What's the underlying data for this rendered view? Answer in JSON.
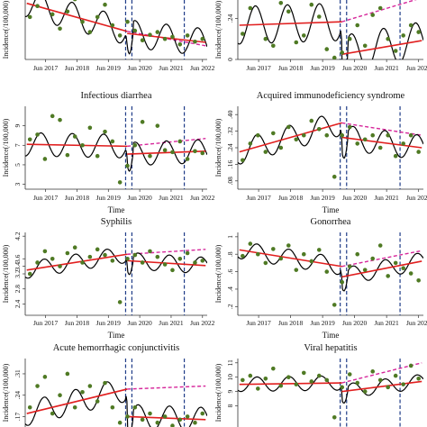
{
  "figure": {
    "colors": {
      "observed_dot": "#4f7a24",
      "fitted_line": "#000000",
      "trend_line": "#e11f1f",
      "counterfactual_line": "#d6279b",
      "intervention_line": "#1f3c88",
      "axis": "#333333"
    },
    "x_label": "Time",
    "y_label": "Incidence(/100,000)"
  },
  "chart_data": [
    {
      "id": "p1",
      "type": "line",
      "title": "",
      "xlabel": "",
      "ylabel": "Incidence(/100,000)",
      "x_ticks": [
        "Jun 2017",
        "Jun 2018",
        "Jun 2019",
        "Jun 2020",
        "Jun 2021",
        "Jun 2022"
      ],
      "y_ticks": [],
      "ylim": [
        0,
        1
      ],
      "interventions": [
        2020.05,
        2020.25,
        2021.92
      ],
      "seasonal": {
        "amp": 0.2,
        "period": 1.0,
        "phase": 0.1
      },
      "segments": [
        {
          "x": [
            2016.9,
            2020.1
          ],
          "y": [
            0.82,
            0.41
          ]
        },
        {
          "x": [
            2020.1,
            2022.6
          ],
          "y": [
            0.38,
            0.25
          ]
        }
      ],
      "counterfactual": {
        "x": [
          2020.1,
          2022.6
        ],
        "y": [
          0.41,
          0.2
        ]
      },
      "series": [
        {
          "values": [
            0.62,
            0.78,
            0.95,
            0.66,
            0.45,
            0.7,
            0.88,
            0.55,
            0.4,
            0.62,
            0.8,
            0.5,
            0.35,
            0.55,
            0.42,
            0.28,
            0.36,
            0.4,
            0.3,
            0.33,
            0.22,
            0.35,
            0.26,
            0.3
          ]
        }
      ]
    },
    {
      "id": "p2",
      "type": "line",
      "title": "",
      "xlabel": "",
      "ylabel": "Incidence(/100,000)",
      "x_ticks": [
        "Jun 2017",
        "Jun 2018",
        "Jun 2019",
        "Jun 2020",
        "Jun 2021",
        "Jun 2022"
      ],
      "y_ticks": [
        "0",
        ".24"
      ],
      "ylim": [
        0,
        0.4
      ],
      "interventions": [
        2020.05,
        2020.25,
        2021.92
      ],
      "seasonal": {
        "amp": 0.11,
        "period": 1.0,
        "phase": 0.15
      },
      "segments": [
        {
          "x": [
            2016.9,
            2020.1
          ],
          "y": [
            0.2,
            0.22
          ]
        },
        {
          "x": [
            2020.1,
            2022.6
          ],
          "y": [
            0.03,
            0.11
          ]
        }
      ],
      "counterfactual": {
        "x": [
          2020.1,
          2022.6
        ],
        "y": [
          0.22,
          0.36
        ]
      },
      "series": [
        {
          "values": [
            0.15,
            0.3,
            0.36,
            0.12,
            0.08,
            0.33,
            0.28,
            0.1,
            0.14,
            0.32,
            0.25,
            0.06,
            0.01,
            0.04,
            0.12,
            0.2,
            0.08,
            0.26,
            0.3,
            0.12,
            0.05,
            0.14,
            0.2,
            0.16
          ]
        }
      ]
    },
    {
      "id": "p3",
      "type": "line",
      "title": "Infectious diarrhea",
      "xlabel": "Time",
      "ylabel": "Incidence(/100,000)",
      "x_ticks": [
        "Jun 2017",
        "Jun 2018",
        "Jun 2019",
        "Jun 2020",
        "Jun 2021",
        "Jun 2022"
      ],
      "y_ticks": [
        "3",
        "5",
        "7",
        "9"
      ],
      "ylim": [
        2.5,
        11
      ],
      "interventions": [
        2020.05,
        2020.25,
        2021.92
      ],
      "seasonal": {
        "amp": 1.2,
        "period": 1.0,
        "phase": 0.1
      },
      "segments": [
        {
          "x": [
            2016.9,
            2020.1
          ],
          "y": [
            7.1,
            6.9
          ]
        },
        {
          "x": [
            2020.1,
            2022.6
          ],
          "y": [
            6.1,
            6.4
          ]
        }
      ],
      "counterfactual": {
        "x": [
          2020.1,
          2022.6
        ],
        "y": [
          6.9,
          7.7
        ]
      },
      "series": [
        {
          "values": [
            7.6,
            8.1,
            5.6,
            10.0,
            9.6,
            6.0,
            7.9,
            7.0,
            8.8,
            5.9,
            8.4,
            7.4,
            3.2,
            4.9,
            7.0,
            9.4,
            5.9,
            9.0,
            6.5,
            6.3,
            7.4,
            5.6,
            6.4,
            6.2
          ]
        }
      ]
    },
    {
      "id": "p4",
      "type": "line",
      "title": "Acquired immunodeficiency syndrome",
      "xlabel": "Time",
      "ylabel": "Incidence(/100,000)",
      "x_ticks": [
        "Jun 2017",
        "Jun 2018",
        "Jun 2019",
        "Jun 2020",
        "Jun 2021",
        "Jun 2022"
      ],
      "y_ticks": [
        ".08",
        ".16",
        ".24",
        ".32",
        ".40"
      ],
      "ylim": [
        0.04,
        0.44
      ],
      "interventions": [
        2020.05,
        2020.25,
        2021.92
      ],
      "seasonal": {
        "amp": 0.06,
        "period": 1.0,
        "phase": 0.2
      },
      "segments": [
        {
          "x": [
            2016.9,
            2020.1
          ],
          "y": [
            0.22,
            0.36
          ]
        },
        {
          "x": [
            2020.1,
            2022.6
          ],
          "y": [
            0.29,
            0.24
          ]
        }
      ],
      "counterfactual": {
        "x": [
          2020.1,
          2022.6
        ],
        "y": [
          0.36,
          0.3
        ]
      },
      "series": [
        {
          "values": [
            0.18,
            0.26,
            0.3,
            0.22,
            0.31,
            0.24,
            0.34,
            0.28,
            0.3,
            0.37,
            0.33,
            0.3,
            0.1,
            0.3,
            0.34,
            0.26,
            0.28,
            0.3,
            0.24,
            0.3,
            0.2,
            0.26,
            0.3,
            0.22
          ]
        }
      ]
    },
    {
      "id": "p5",
      "type": "line",
      "title": "Syphilis",
      "xlabel": "Time",
      "ylabel": "Incidence(/100,000)",
      "x_ticks": [
        "Jun 2017",
        "Jun 2018",
        "Jun 2019",
        "Jun 2020",
        "Jun 2021",
        "Jun 2022"
      ],
      "y_ticks": [
        "2.4",
        "2.8",
        "3.2",
        "3.4",
        "3.6",
        "4.2"
      ],
      "ylim": [
        2.1,
        4.3
      ],
      "interventions": [
        2020.05,
        2020.25,
        2021.92
      ],
      "seasonal": {
        "amp": 0.22,
        "period": 1.0,
        "phase": 0.2
      },
      "segments": [
        {
          "x": [
            2016.9,
            2020.1
          ],
          "y": [
            3.3,
            3.72
          ]
        },
        {
          "x": [
            2020.1,
            2022.6
          ],
          "y": [
            3.55,
            3.42
          ]
        }
      ],
      "counterfactual": {
        "x": [
          2020.1,
          2022.6
        ],
        "y": [
          3.72,
          3.85
        ]
      },
      "series": [
        {
          "values": [
            3.2,
            3.5,
            3.8,
            3.6,
            3.4,
            3.75,
            3.9,
            3.5,
            3.65,
            3.85,
            3.7,
            3.55,
            2.45,
            3.6,
            3.7,
            3.5,
            3.8,
            3.65,
            3.45,
            3.3,
            3.6,
            3.75,
            3.5,
            3.55
          ]
        }
      ]
    },
    {
      "id": "p6",
      "type": "line",
      "title": "Gonorrhea",
      "xlabel": "Time",
      "ylabel": "Incidence(/100,000)",
      "x_ticks": [
        "Jun 2017",
        "Jun 2018",
        "Jun 2019",
        "Jun 2020",
        "Jun 2021",
        "Jun 2022"
      ],
      "y_ticks": [
        ".2",
        ".4",
        ".6",
        ".8",
        "1"
      ],
      "ylim": [
        0.1,
        1.05
      ],
      "interventions": [
        2020.05,
        2020.25,
        2021.92
      ],
      "seasonal": {
        "amp": 0.1,
        "period": 1.0,
        "phase": 0.2
      },
      "segments": [
        {
          "x": [
            2016.9,
            2020.1
          ],
          "y": [
            0.85,
            0.66
          ]
        },
        {
          "x": [
            2020.1,
            2022.6
          ],
          "y": [
            0.54,
            0.72
          ]
        }
      ],
      "counterfactual": {
        "x": [
          2020.1,
          2022.6
        ],
        "y": [
          0.66,
          0.84
        ]
      },
      "series": [
        {
          "values": [
            0.78,
            0.92,
            0.8,
            0.7,
            0.86,
            0.75,
            0.9,
            0.62,
            0.8,
            0.72,
            0.85,
            0.6,
            0.22,
            0.48,
            0.66,
            0.8,
            0.62,
            0.75,
            0.9,
            0.55,
            0.7,
            0.64,
            0.58,
            0.5
          ]
        }
      ]
    },
    {
      "id": "p7",
      "type": "line",
      "title": "Acute hemorrhagic conjunctivitis",
      "xlabel": "",
      "ylabel": "Incidence(/100,000)",
      "x_ticks": [],
      "y_ticks": [
        ".17",
        ".24",
        ".31"
      ],
      "ylim": [
        0.13,
        0.36
      ],
      "interventions": [
        2020.05,
        2020.25,
        2021.92
      ],
      "seasonal": {
        "amp": 0.04,
        "period": 1.0,
        "phase": 0.2
      },
      "segments": [
        {
          "x": [
            2016.9,
            2020.1
          ],
          "y": [
            0.18,
            0.26
          ]
        },
        {
          "x": [
            2020.1,
            2022.6
          ],
          "y": [
            0.17,
            0.16
          ]
        }
      ],
      "counterfactual": {
        "x": [
          2020.1,
          2022.6
        ],
        "y": [
          0.26,
          0.27
        ]
      },
      "series": [
        {
          "values": [
            0.2,
            0.27,
            0.3,
            0.18,
            0.24,
            0.31,
            0.2,
            0.25,
            0.27,
            0.22,
            0.28,
            0.2,
            0.15,
            0.17,
            0.2,
            0.16,
            0.18,
            0.15,
            0.17,
            0.14,
            0.16,
            0.17,
            0.15,
            0.18
          ]
        }
      ]
    },
    {
      "id": "p8",
      "type": "line",
      "title": "Viral hepatitis",
      "xlabel": "",
      "ylabel": "Incidence(/100,000)",
      "x_ticks": [],
      "y_ticks": [
        "8",
        "9",
        "10",
        "11"
      ],
      "ylim": [
        6.4,
        11.3
      ],
      "interventions": [
        2020.05,
        2020.25,
        2021.92
      ],
      "seasonal": {
        "amp": 0.5,
        "period": 1.0,
        "phase": 0.2
      },
      "segments": [
        {
          "x": [
            2016.9,
            2020.1
          ],
          "y": [
            9.5,
            9.6
          ]
        },
        {
          "x": [
            2020.1,
            2022.6
          ],
          "y": [
            9.0,
            9.7
          ]
        }
      ],
      "counterfactual": {
        "x": [
          2020.1,
          2022.6
        ],
        "y": [
          9.6,
          11.0
        ]
      },
      "series": [
        {
          "values": [
            9.8,
            10.1,
            9.2,
            9.9,
            10.6,
            9.4,
            10.0,
            9.5,
            10.3,
            9.7,
            10.1,
            9.8,
            7.2,
            9.3,
            10.2,
            9.6,
            9.0,
            10.4,
            9.8,
            9.3,
            10.1,
            9.5,
            10.8,
            9.9
          ]
        }
      ]
    }
  ]
}
